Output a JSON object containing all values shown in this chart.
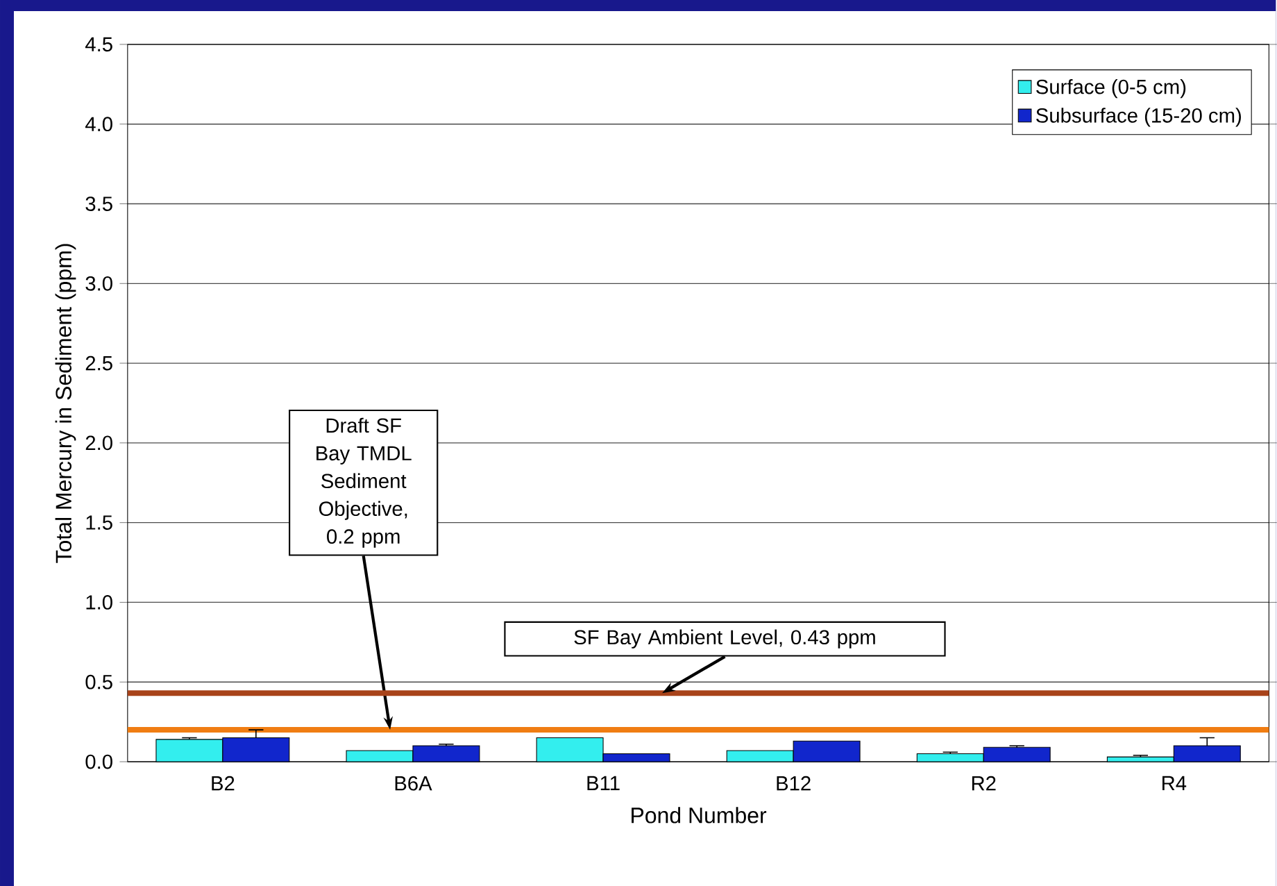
{
  "chart_data": {
    "type": "bar",
    "xlabel": "Pond Number",
    "ylabel": "Total Mercury in Sediment (ppm)",
    "categories": [
      "B2",
      "B6A",
      "B11",
      "B12",
      "R2",
      "R4"
    ],
    "series": [
      {
        "name": "Surface (0-5 cm)",
        "color": "#33eeee",
        "values": [
          0.14,
          0.07,
          0.15,
          0.07,
          0.05,
          0.03
        ],
        "errors": [
          0.01,
          null,
          null,
          null,
          0.01,
          0.01
        ]
      },
      {
        "name": "Subsurface (15-20 cm)",
        "color": "#1126cc",
        "values": [
          0.15,
          0.1,
          0.05,
          0.13,
          0.09,
          0.1
        ],
        "errors": [
          0.05,
          0.01,
          null,
          null,
          0.01,
          0.05
        ]
      }
    ],
    "ylim": [
      0,
      4.5
    ],
    "yticks": [
      {
        "value": 0,
        "label": "0.0"
      },
      0.5,
      {
        "value": 1,
        "label": "1.0"
      },
      1.5,
      {
        "value": 2,
        "label": "2.0"
      },
      2.5,
      {
        "value": 3,
        "label": "3.0"
      },
      3.5,
      {
        "value": 4,
        "label": "4.0"
      },
      4.5
    ],
    "ref_lines": [
      {
        "axis": "y",
        "value": 0.2,
        "label": "Draft SF Bay TMDL Sediment Objective, 0.2 ppm",
        "color": "#f07d12"
      },
      {
        "axis": "y",
        "value": 0.43,
        "label": "SF Bay Ambient Level, 0.43 ppm",
        "color": "#a8431a"
      }
    ],
    "grid": "y",
    "legend": "top right"
  }
}
